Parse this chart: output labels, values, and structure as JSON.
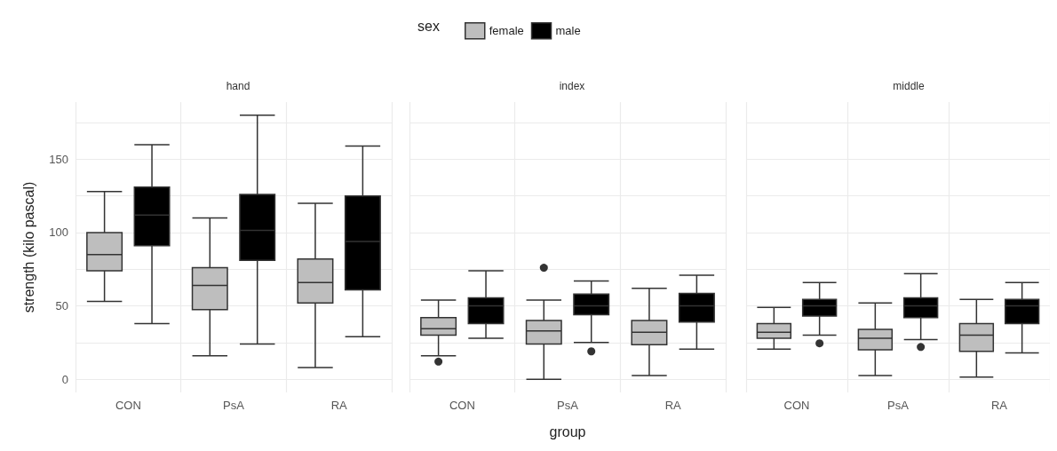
{
  "chart_data": [
    {
      "type": "box",
      "title": "hand",
      "categories": [
        "CON",
        "PsA",
        "RA"
      ],
      "ylabel": "strength (kilo pascal)",
      "legend": "top",
      "legend_title": "sex",
      "ylim": [
        -9,
        189
      ],
      "yticks": [
        0,
        {
          "value": 25,
          "label": null
        },
        50,
        {
          "value": 75,
          "label": null
        },
        100,
        {
          "value": 125,
          "label": null
        },
        150,
        {
          "value": 175,
          "label": null
        }
      ],
      "grid": true,
      "series": [
        {
          "name": "female",
          "color": "#bebebe",
          "boxes": [
            {
              "low": 53,
              "q1": 74,
              "median": 85,
              "q3": 100,
              "high": 128
            },
            {
              "low": 16,
              "q1": 47.5,
              "median": 64,
              "q3": 76,
              "high": 110
            },
            {
              "low": 8,
              "q1": 52,
              "median": 66,
              "q3": 82,
              "high": 120
            }
          ]
        },
        {
          "name": "male",
          "color": "#000000",
          "boxes": [
            {
              "low": 38,
              "q1": 91,
              "median": 112,
              "q3": 131,
              "high": 160
            },
            {
              "low": 24,
              "q1": 81,
              "median": 101.5,
              "q3": 126,
              "high": 180
            },
            {
              "low": 29,
              "q1": 61,
              "median": 94,
              "q3": 125,
              "high": 159
            }
          ]
        }
      ]
    },
    {
      "type": "box",
      "title": "index",
      "categories": [
        "CON",
        "PsA",
        "RA"
      ],
      "xlabel": "group",
      "tick_labels": "x",
      "ylim": [
        -9,
        189
      ],
      "yticks": [
        0,
        {
          "value": 25,
          "label": null
        },
        50,
        {
          "value": 75,
          "label": null
        },
        100,
        {
          "value": 125,
          "label": null
        },
        150,
        {
          "value": 175,
          "label": null
        }
      ],
      "grid": true,
      "series": [
        {
          "color": "#bebebe",
          "boxes": [
            {
              "low": 16,
              "q1": 30,
              "median": 34.5,
              "q3": 42,
              "high": 54,
              "outliers": [
                12
              ]
            },
            {
              "low": 0,
              "q1": 24,
              "median": 33,
              "q3": 40,
              "high": 54,
              "outliers": [
                76
              ]
            },
            {
              "low": 2.5,
              "q1": 23.5,
              "median": 32,
              "q3": 40,
              "high": 62
            }
          ]
        },
        {
          "color": "#000000",
          "boxes": [
            {
              "low": 28,
              "q1": 38,
              "median": 50,
              "q3": 55.5,
              "high": 74
            },
            {
              "low": 25,
              "q1": 44,
              "median": 50,
              "q3": 58,
              "high": 67,
              "outliers": [
                19
              ]
            },
            {
              "low": 20.5,
              "q1": 39,
              "median": 50,
              "q3": 58.5,
              "high": 71
            }
          ]
        }
      ]
    },
    {
      "type": "box",
      "title": "middle",
      "categories": [
        "CON",
        "PsA",
        "RA"
      ],
      "tick_labels": "x",
      "ylim": [
        -9,
        189
      ],
      "yticks": [
        0,
        {
          "value": 25,
          "label": null
        },
        50,
        {
          "value": 75,
          "label": null
        },
        100,
        {
          "value": 125,
          "label": null
        },
        150,
        {
          "value": 175,
          "label": null
        }
      ],
      "grid": true,
      "series": [
        {
          "color": "#bebebe",
          "boxes": [
            {
              "low": 20.5,
              "q1": 28,
              "median": 32,
              "q3": 38,
              "high": 49
            },
            {
              "low": 2.5,
              "q1": 20,
              "median": 28,
              "q3": 34,
              "high": 52
            },
            {
              "low": 1.5,
              "q1": 19,
              "median": 30,
              "q3": 38,
              "high": 54.5
            }
          ]
        },
        {
          "color": "#000000",
          "boxes": [
            {
              "low": 30,
              "q1": 43,
              "median": 50,
              "q3": 54.5,
              "high": 66,
              "outliers": [
                24.5
              ]
            },
            {
              "low": 27,
              "q1": 42,
              "median": 50,
              "q3": 55.5,
              "high": 72,
              "outliers": [
                22
              ]
            },
            {
              "low": 18,
              "q1": 38,
              "median": 50,
              "q3": 54.5,
              "high": 66
            }
          ]
        }
      ]
    }
  ]
}
